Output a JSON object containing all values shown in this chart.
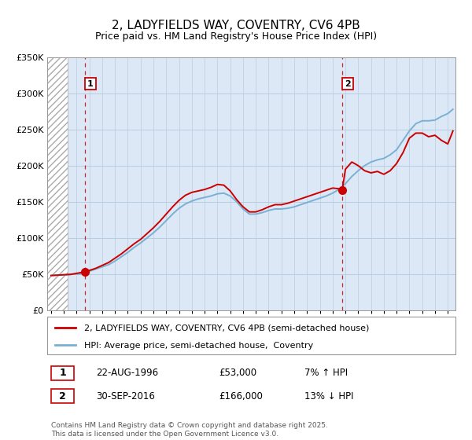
{
  "title": "2, LADYFIELDS WAY, COVENTRY, CV6 4PB",
  "subtitle": "Price paid vs. HM Land Registry's House Price Index (HPI)",
  "ymin": 0,
  "ymax": 350000,
  "xmin": 1993.7,
  "xmax": 2025.6,
  "yticks": [
    0,
    50000,
    100000,
    150000,
    200000,
    250000,
    300000,
    350000
  ],
  "ytick_labels": [
    "£0",
    "£50K",
    "£100K",
    "£150K",
    "£200K",
    "£250K",
    "£300K",
    "£350K"
  ],
  "sale1_x": 1996.64,
  "sale1_y": 53000,
  "sale1_label": "1",
  "sale2_x": 2016.75,
  "sale2_y": 166000,
  "sale2_label": "2",
  "red_color": "#cc0000",
  "blue_color": "#7ab0d4",
  "legend_line1": "2, LADYFIELDS WAY, COVENTRY, CV6 4PB (semi-detached house)",
  "legend_line2": "HPI: Average price, semi-detached house,  Coventry",
  "table_row1_num": "1",
  "table_row1_date": "22-AUG-1996",
  "table_row1_price": "£53,000",
  "table_row1_hpi": "7% ↑ HPI",
  "table_row2_num": "2",
  "table_row2_date": "30-SEP-2016",
  "table_row2_price": "£166,000",
  "table_row2_hpi": "13% ↓ HPI",
  "copyright": "Contains HM Land Registry data © Crown copyright and database right 2025.\nThis data is licensed under the Open Government Licence v3.0.",
  "bg_color": "#ffffff",
  "plot_bg": "#dce8f5",
  "hatch_end": 1995.3,
  "hpi_years": [
    1994.0,
    1994.5,
    1995.0,
    1995.5,
    1996.0,
    1996.5,
    1997.0,
    1997.5,
    1998.0,
    1998.5,
    1999.0,
    1999.5,
    2000.0,
    2000.5,
    2001.0,
    2001.5,
    2002.0,
    2002.5,
    2003.0,
    2003.5,
    2004.0,
    2004.5,
    2005.0,
    2005.5,
    2006.0,
    2006.5,
    2007.0,
    2007.5,
    2008.0,
    2008.5,
    2009.0,
    2009.5,
    2010.0,
    2010.5,
    2011.0,
    2011.5,
    2012.0,
    2012.5,
    2013.0,
    2013.5,
    2014.0,
    2014.5,
    2015.0,
    2015.5,
    2016.0,
    2016.5,
    2017.0,
    2017.5,
    2018.0,
    2018.5,
    2019.0,
    2019.5,
    2020.0,
    2020.5,
    2021.0,
    2021.5,
    2022.0,
    2022.5,
    2023.0,
    2023.5,
    2024.0,
    2024.5,
    2025.0,
    2025.4
  ],
  "hpi_prices": [
    48000,
    48500,
    49000,
    49500,
    50000,
    50500,
    54000,
    57000,
    60000,
    63000,
    68000,
    74000,
    80000,
    87000,
    93000,
    100000,
    107000,
    115000,
    124000,
    133000,
    141000,
    147000,
    151000,
    154000,
    156000,
    158000,
    161000,
    162000,
    158000,
    150000,
    140000,
    133000,
    133000,
    135000,
    138000,
    140000,
    140000,
    141000,
    143000,
    146000,
    149000,
    152000,
    155000,
    158000,
    162000,
    167000,
    175000,
    185000,
    193000,
    200000,
    205000,
    208000,
    210000,
    215000,
    222000,
    235000,
    248000,
    258000,
    262000,
    262000,
    263000,
    268000,
    272000,
    278000
  ],
  "red_years": [
    1994.0,
    1994.5,
    1995.0,
    1995.5,
    1996.0,
    1996.64,
    1997.0,
    1997.5,
    1998.0,
    1998.5,
    1999.0,
    1999.5,
    2000.0,
    2000.5,
    2001.0,
    2001.5,
    2002.0,
    2002.5,
    2003.0,
    2003.5,
    2004.0,
    2004.5,
    2005.0,
    2005.5,
    2006.0,
    2006.5,
    2007.0,
    2007.5,
    2008.0,
    2008.5,
    2009.0,
    2009.5,
    2010.0,
    2010.5,
    2011.0,
    2011.5,
    2012.0,
    2012.5,
    2013.0,
    2013.5,
    2014.0,
    2014.5,
    2015.0,
    2015.5,
    2016.0,
    2016.5,
    2016.75,
    2017.0,
    2017.5,
    2018.0,
    2018.5,
    2019.0,
    2019.5,
    2020.0,
    2020.5,
    2021.0,
    2021.5,
    2022.0,
    2022.5,
    2023.0,
    2023.5,
    2024.0,
    2024.5,
    2025.0,
    2025.4
  ],
  "red_prices": [
    48000,
    48500,
    49000,
    49500,
    51000,
    53000,
    55000,
    58000,
    62000,
    66000,
    72000,
    78000,
    85000,
    92000,
    98000,
    106000,
    114000,
    123000,
    133000,
    143000,
    152000,
    159000,
    163000,
    165000,
    167000,
    170000,
    174000,
    173000,
    165000,
    153000,
    143000,
    136000,
    136000,
    139000,
    143000,
    146000,
    146000,
    148000,
    151000,
    154000,
    157000,
    160000,
    163000,
    166000,
    169000,
    168000,
    166000,
    195000,
    205000,
    200000,
    193000,
    190000,
    192000,
    188000,
    193000,
    203000,
    218000,
    238000,
    245000,
    245000,
    240000,
    242000,
    235000,
    230000,
    248000
  ]
}
